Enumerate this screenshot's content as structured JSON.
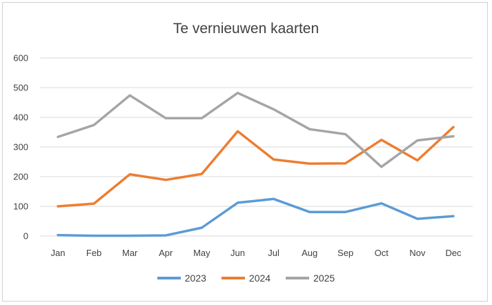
{
  "chart_data": {
    "type": "line",
    "title": "Te vernieuwen kaarten",
    "xlabel": "",
    "ylabel": "",
    "categories": [
      "Jan",
      "Feb",
      "Mar",
      "Apr",
      "May",
      "Jun",
      "Jul",
      "Aug",
      "Sep",
      "Oct",
      "Nov",
      "Dec"
    ],
    "ylim": [
      0,
      600
    ],
    "yticks": [
      "0",
      "100",
      "200",
      "300",
      "400",
      "500",
      "600"
    ],
    "grid": true,
    "legend_position": "bottom",
    "series": [
      {
        "name": "2023",
        "color": "#5b9bd5",
        "values": [
          3,
          1,
          1,
          2,
          28,
          112,
          125,
          81,
          81,
          110,
          58,
          67
        ]
      },
      {
        "name": "2024",
        "color": "#ed7d31",
        "values": [
          100,
          109,
          208,
          189,
          209,
          353,
          258,
          244,
          245,
          324,
          255,
          367
        ]
      },
      {
        "name": "2025",
        "color": "#a5a5a5",
        "values": [
          334,
          374,
          474,
          397,
          397,
          482,
          427,
          360,
          343,
          233,
          322,
          336
        ]
      }
    ]
  }
}
